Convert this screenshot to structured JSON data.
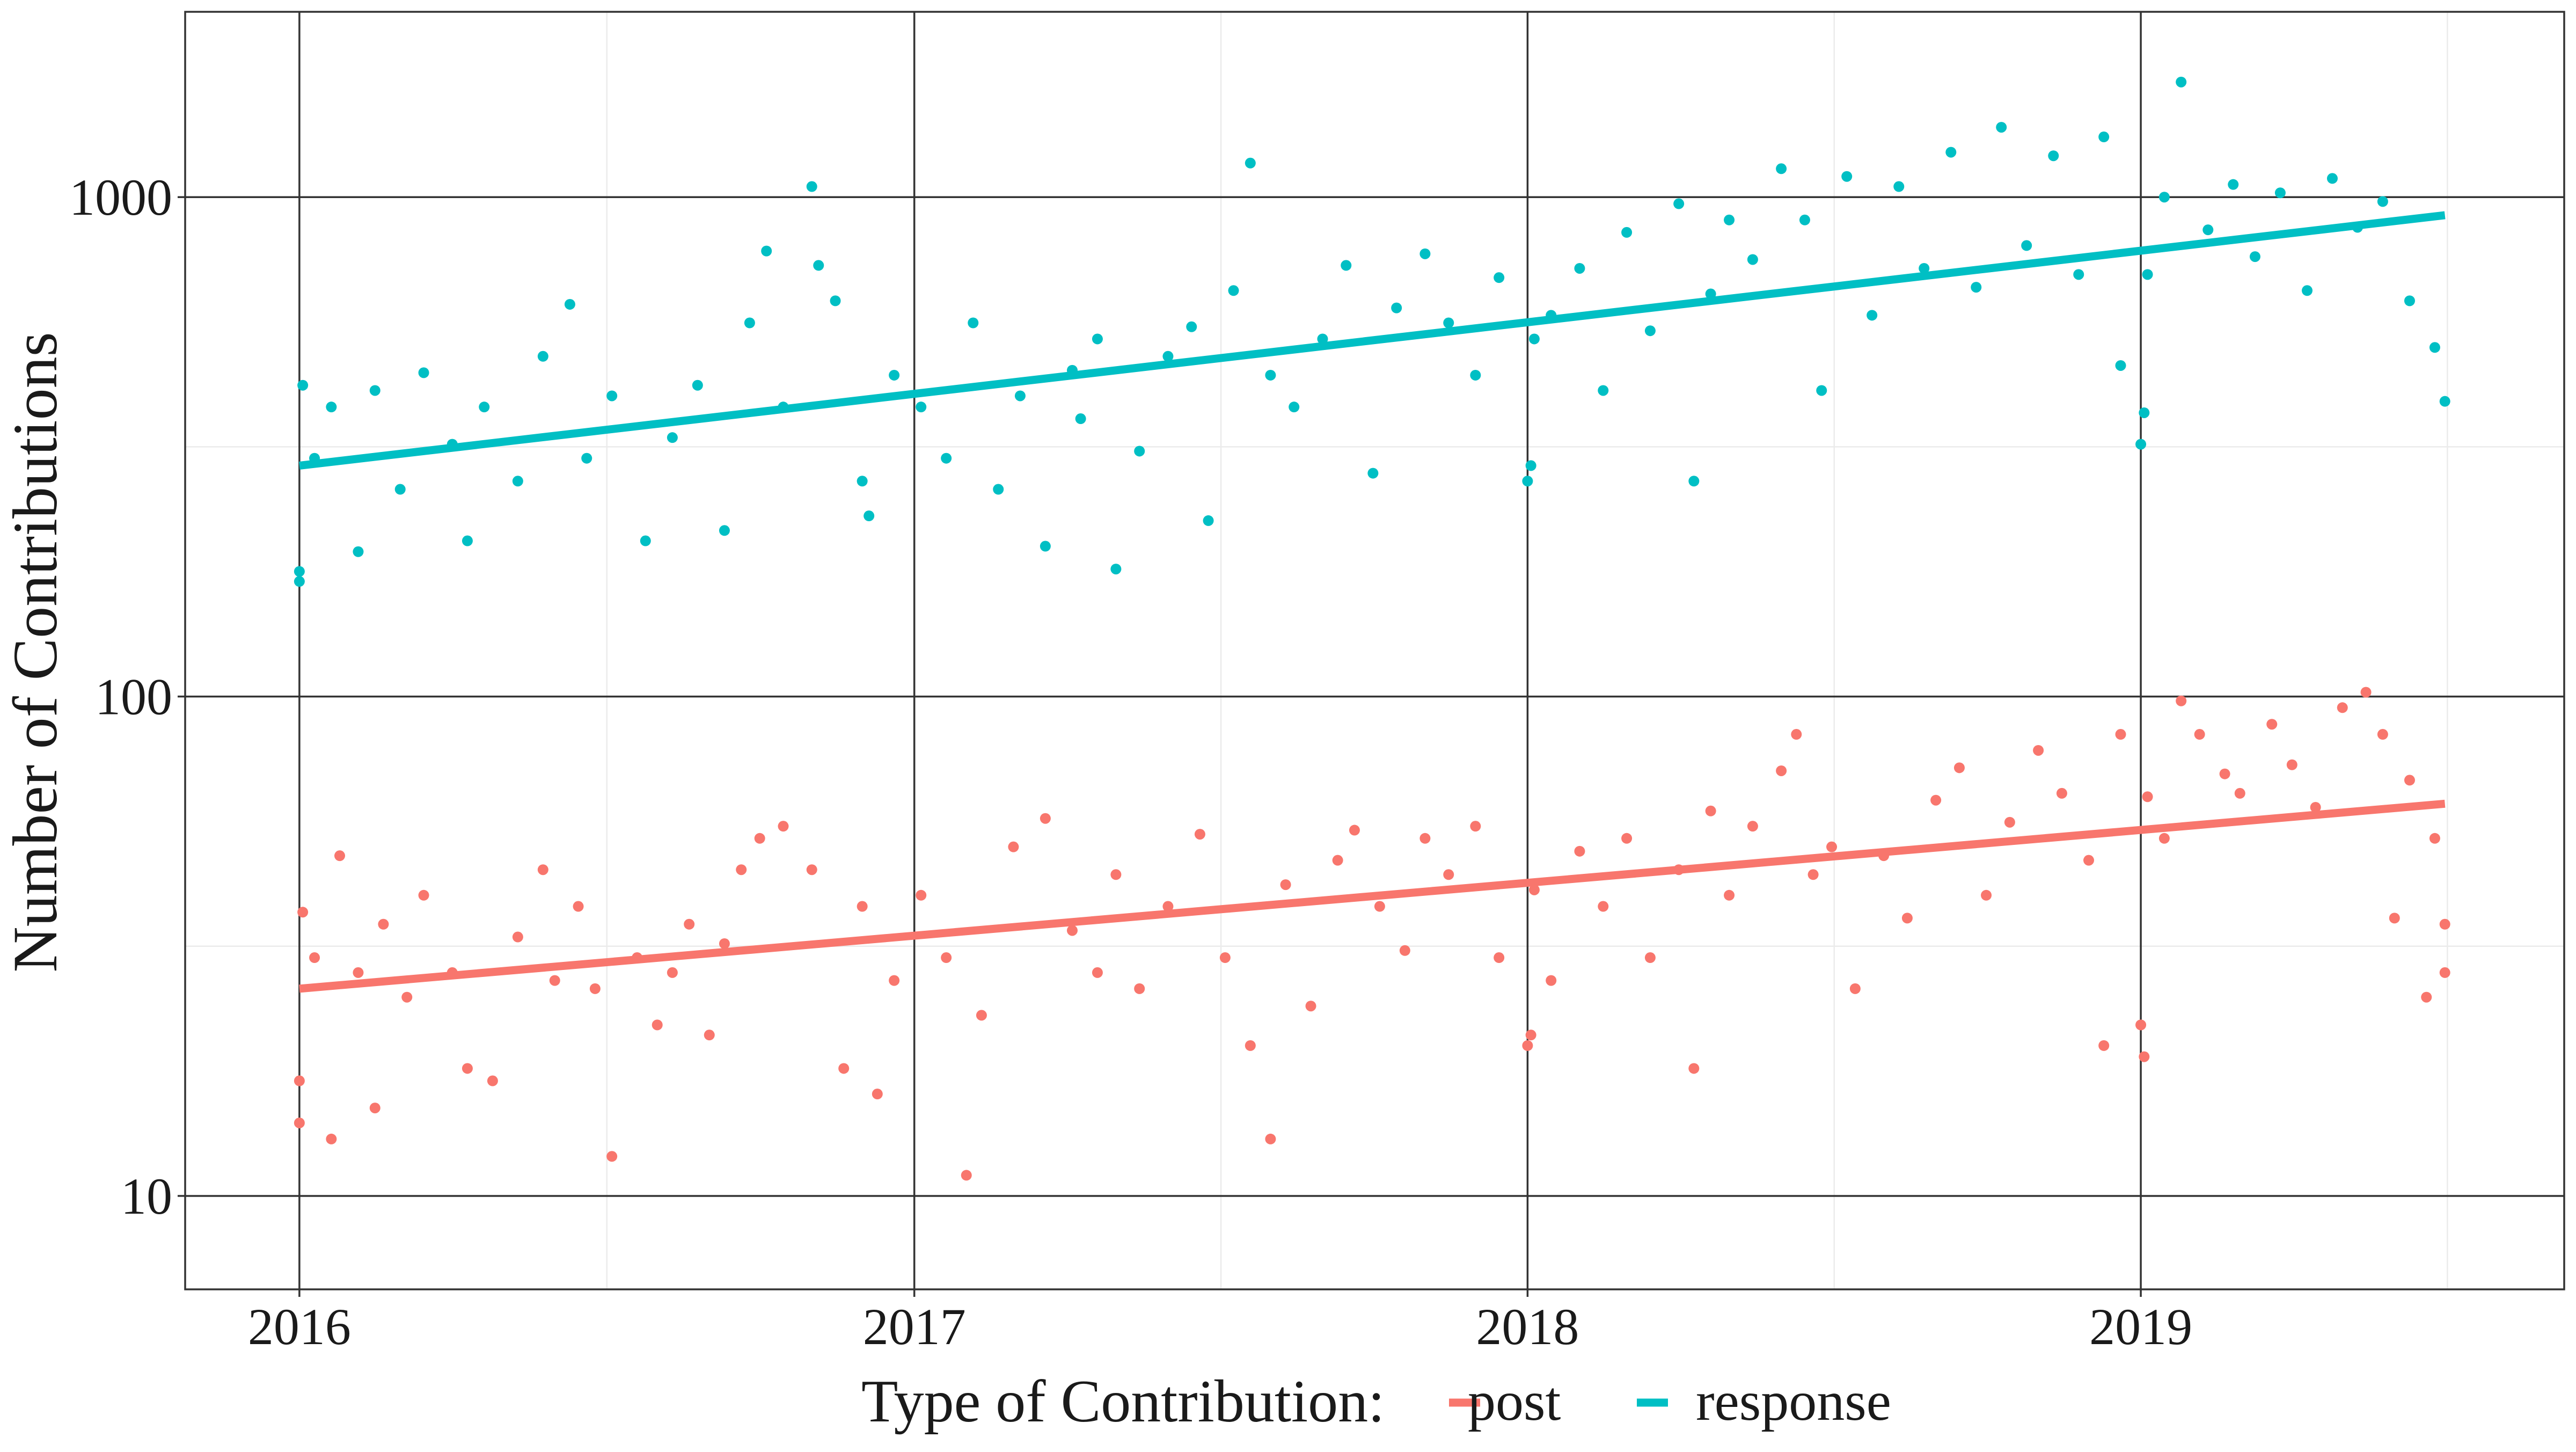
{
  "chart_data": {
    "type": "scatter",
    "xlabel": "",
    "ylabel": "Number of Contributions",
    "yscale": "log",
    "xlim": [
      "2015-10-25",
      "2019-09-10"
    ],
    "ylim": [
      6.5,
      2350
    ],
    "x_ticks": [
      {
        "date": "2016-01-01",
        "label": "2016"
      },
      {
        "date": "2017-01-01",
        "label": "2017"
      },
      {
        "date": "2018-01-01",
        "label": "2018"
      },
      {
        "date": "2019-01-01",
        "label": "2019"
      }
    ],
    "y_ticks": [
      {
        "value": 10,
        "label": "10"
      },
      {
        "value": 100,
        "label": "100"
      },
      {
        "value": 1000,
        "label": "1000"
      }
    ],
    "grid": true,
    "legend": {
      "title": "Type of Contribution:",
      "position": "bottom"
    },
    "series": [
      {
        "name": "post",
        "color": "#F8766D",
        "trend": {
          "from": [
            "2016-01-01",
            26
          ],
          "to": [
            "2019-07-01",
            61
          ]
        },
        "points": [
          [
            "2016-01-01",
            14
          ],
          [
            "2016-01-01",
            17
          ],
          [
            "2016-01-03",
            37
          ],
          [
            "2016-01-10",
            30
          ],
          [
            "2016-01-20",
            13
          ],
          [
            "2016-01-25",
            48
          ],
          [
            "2016-02-05",
            28
          ],
          [
            "2016-02-15",
            15
          ],
          [
            "2016-02-20",
            35
          ],
          [
            "2016-03-05",
            25
          ],
          [
            "2016-03-15",
            40
          ],
          [
            "2016-04-01",
            28
          ],
          [
            "2016-04-10",
            18
          ],
          [
            "2016-04-25",
            17
          ],
          [
            "2016-05-10",
            33
          ],
          [
            "2016-05-25",
            45
          ],
          [
            "2016-06-01",
            27
          ],
          [
            "2016-06-15",
            38
          ],
          [
            "2016-06-25",
            26
          ],
          [
            "2016-07-05",
            12
          ],
          [
            "2016-07-20",
            30
          ],
          [
            "2016-08-01",
            22
          ],
          [
            "2016-08-10",
            28
          ],
          [
            "2016-08-20",
            35
          ],
          [
            "2016-09-01",
            21
          ],
          [
            "2016-09-10",
            32
          ],
          [
            "2016-09-20",
            45
          ],
          [
            "2016-10-01",
            52
          ],
          [
            "2016-10-15",
            55
          ],
          [
            "2016-11-01",
            45
          ],
          [
            "2016-11-20",
            18
          ],
          [
            "2016-12-01",
            38
          ],
          [
            "2016-12-10",
            16
          ],
          [
            "2016-12-20",
            27
          ],
          [
            "2017-01-05",
            40
          ],
          [
            "2017-01-20",
            30
          ],
          [
            "2017-02-01",
            11
          ],
          [
            "2017-02-10",
            23
          ],
          [
            "2017-03-01",
            50
          ],
          [
            "2017-03-20",
            57
          ],
          [
            "2017-04-05",
            34
          ],
          [
            "2017-04-20",
            28
          ],
          [
            "2017-05-01",
            44
          ],
          [
            "2017-05-15",
            26
          ],
          [
            "2017-06-01",
            38
          ],
          [
            "2017-06-20",
            53
          ],
          [
            "2017-07-05",
            30
          ],
          [
            "2017-07-20",
            20
          ],
          [
            "2017-08-01",
            13
          ],
          [
            "2017-08-10",
            42
          ],
          [
            "2017-08-25",
            24
          ],
          [
            "2017-09-10",
            47
          ],
          [
            "2017-09-20",
            54
          ],
          [
            "2017-10-05",
            38
          ],
          [
            "2017-10-20",
            31
          ],
          [
            "2017-11-01",
            52
          ],
          [
            "2017-11-15",
            44
          ],
          [
            "2017-12-01",
            55
          ],
          [
            "2017-12-15",
            30
          ],
          [
            "2018-01-01",
            20
          ],
          [
            "2018-01-03",
            21
          ],
          [
            "2018-01-05",
            41
          ],
          [
            "2018-01-15",
            27
          ],
          [
            "2018-02-01",
            49
          ],
          [
            "2018-02-15",
            38
          ],
          [
            "2018-03-01",
            52
          ],
          [
            "2018-03-15",
            30
          ],
          [
            "2018-04-01",
            45
          ],
          [
            "2018-04-10",
            18
          ],
          [
            "2018-04-20",
            59
          ],
          [
            "2018-05-01",
            40
          ],
          [
            "2018-05-15",
            55
          ],
          [
            "2018-06-01",
            71
          ],
          [
            "2018-06-10",
            84
          ],
          [
            "2018-06-20",
            44
          ],
          [
            "2018-07-01",
            50
          ],
          [
            "2018-07-15",
            26
          ],
          [
            "2018-08-01",
            48
          ],
          [
            "2018-08-15",
            36
          ],
          [
            "2018-09-01",
            62
          ],
          [
            "2018-09-15",
            72
          ],
          [
            "2018-10-01",
            40
          ],
          [
            "2018-10-15",
            56
          ],
          [
            "2018-11-01",
            78
          ],
          [
            "2018-11-15",
            64
          ],
          [
            "2018-12-01",
            47
          ],
          [
            "2018-12-10",
            20
          ],
          [
            "2018-12-20",
            84
          ],
          [
            "2019-01-01",
            22
          ],
          [
            "2019-01-03",
            19
          ],
          [
            "2019-01-05",
            63
          ],
          [
            "2019-01-15",
            52
          ],
          [
            "2019-01-25",
            98
          ],
          [
            "2019-02-05",
            84
          ],
          [
            "2019-02-20",
            70
          ],
          [
            "2019-03-01",
            64
          ],
          [
            "2019-03-20",
            88
          ],
          [
            "2019-04-01",
            73
          ],
          [
            "2019-04-15",
            60
          ],
          [
            "2019-05-01",
            95
          ],
          [
            "2019-05-15",
            102
          ],
          [
            "2019-05-25",
            84
          ],
          [
            "2019-06-01",
            36
          ],
          [
            "2019-06-10",
            68
          ],
          [
            "2019-06-20",
            25
          ],
          [
            "2019-06-25",
            52
          ],
          [
            "2019-07-01",
            28
          ],
          [
            "2019-07-01",
            35
          ]
        ]
      },
      {
        "name": "response",
        "color": "#00BFC4",
        "trend": {
          "from": [
            "2016-01-01",
            290
          ],
          "to": [
            "2019-07-01",
            920
          ]
        },
        "points": [
          [
            "2016-01-01",
            170
          ],
          [
            "2016-01-01",
            178
          ],
          [
            "2016-01-03",
            420
          ],
          [
            "2016-01-10",
            300
          ],
          [
            "2016-01-20",
            380
          ],
          [
            "2016-02-05",
            195
          ],
          [
            "2016-02-15",
            410
          ],
          [
            "2016-03-01",
            260
          ],
          [
            "2016-03-15",
            445
          ],
          [
            "2016-04-01",
            320
          ],
          [
            "2016-04-10",
            205
          ],
          [
            "2016-04-20",
            380
          ],
          [
            "2016-05-10",
            270
          ],
          [
            "2016-05-25",
            480
          ],
          [
            "2016-06-10",
            610
          ],
          [
            "2016-06-20",
            300
          ],
          [
            "2016-07-05",
            400
          ],
          [
            "2016-07-25",
            205
          ],
          [
            "2016-08-10",
            330
          ],
          [
            "2016-08-25",
            420
          ],
          [
            "2016-09-10",
            215
          ],
          [
            "2016-09-25",
            560
          ],
          [
            "2016-10-05",
            780
          ],
          [
            "2016-10-15",
            380
          ],
          [
            "2016-11-01",
            1050
          ],
          [
            "2016-11-05",
            730
          ],
          [
            "2016-11-15",
            620
          ],
          [
            "2016-12-01",
            270
          ],
          [
            "2016-12-05",
            230
          ],
          [
            "2016-12-20",
            440
          ],
          [
            "2017-01-05",
            380
          ],
          [
            "2017-01-20",
            300
          ],
          [
            "2017-02-05",
            560
          ],
          [
            "2017-02-20",
            260
          ],
          [
            "2017-03-05",
            400
          ],
          [
            "2017-03-20",
            200
          ],
          [
            "2017-04-05",
            450
          ],
          [
            "2017-04-10",
            360
          ],
          [
            "2017-04-20",
            520
          ],
          [
            "2017-05-01",
            180
          ],
          [
            "2017-05-15",
            310
          ],
          [
            "2017-06-01",
            480
          ],
          [
            "2017-06-15",
            550
          ],
          [
            "2017-06-25",
            225
          ],
          [
            "2017-07-10",
            650
          ],
          [
            "2017-07-20",
            1170
          ],
          [
            "2017-08-01",
            440
          ],
          [
            "2017-08-15",
            380
          ],
          [
            "2017-09-01",
            520
          ],
          [
            "2017-09-15",
            730
          ],
          [
            "2017-10-01",
            280
          ],
          [
            "2017-10-15",
            600
          ],
          [
            "2017-11-01",
            770
          ],
          [
            "2017-11-15",
            560
          ],
          [
            "2017-12-01",
            440
          ],
          [
            "2017-12-15",
            690
          ],
          [
            "2018-01-01",
            270
          ],
          [
            "2018-01-03",
            290
          ],
          [
            "2018-01-05",
            520
          ],
          [
            "2018-01-15",
            580
          ],
          [
            "2018-02-01",
            720
          ],
          [
            "2018-02-15",
            410
          ],
          [
            "2018-03-01",
            850
          ],
          [
            "2018-03-15",
            540
          ],
          [
            "2018-04-01",
            970
          ],
          [
            "2018-04-10",
            270
          ],
          [
            "2018-04-20",
            640
          ],
          [
            "2018-05-01",
            900
          ],
          [
            "2018-05-15",
            750
          ],
          [
            "2018-06-01",
            1140
          ],
          [
            "2018-06-15",
            900
          ],
          [
            "2018-06-25",
            410
          ],
          [
            "2018-07-10",
            1100
          ],
          [
            "2018-07-25",
            580
          ],
          [
            "2018-08-10",
            1050
          ],
          [
            "2018-08-25",
            720
          ],
          [
            "2018-09-10",
            1230
          ],
          [
            "2018-09-25",
            660
          ],
          [
            "2018-10-10",
            1380
          ],
          [
            "2018-10-25",
            800
          ],
          [
            "2018-11-10",
            1210
          ],
          [
            "2018-11-25",
            700
          ],
          [
            "2018-12-10",
            1320
          ],
          [
            "2018-12-20",
            460
          ],
          [
            "2019-01-01",
            320
          ],
          [
            "2019-01-03",
            370
          ],
          [
            "2019-01-05",
            700
          ],
          [
            "2019-01-15",
            1000
          ],
          [
            "2019-01-25",
            1700
          ],
          [
            "2019-02-10",
            860
          ],
          [
            "2019-02-25",
            1060
          ],
          [
            "2019-03-10",
            760
          ],
          [
            "2019-03-25",
            1020
          ],
          [
            "2019-04-10",
            650
          ],
          [
            "2019-04-25",
            1090
          ],
          [
            "2019-05-10",
            870
          ],
          [
            "2019-05-25",
            980
          ],
          [
            "2019-06-10",
            620
          ],
          [
            "2019-06-25",
            500
          ],
          [
            "2019-07-01",
            390
          ]
        ]
      }
    ]
  }
}
